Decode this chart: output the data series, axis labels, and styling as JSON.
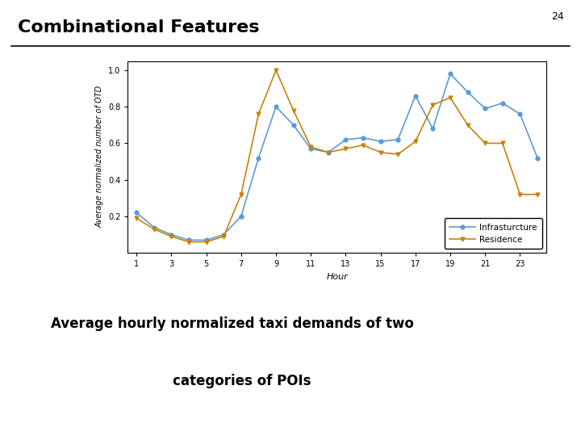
{
  "hours": [
    1,
    2,
    3,
    4,
    5,
    6,
    7,
    8,
    9,
    10,
    11,
    12,
    13,
    14,
    15,
    16,
    17,
    18,
    19,
    20,
    21,
    22,
    23,
    24
  ],
  "infrastructure": [
    0.22,
    0.14,
    0.1,
    0.07,
    0.07,
    0.1,
    0.2,
    0.52,
    0.8,
    0.7,
    0.57,
    0.55,
    0.62,
    0.63,
    0.61,
    0.62,
    0.86,
    0.68,
    0.98,
    0.88,
    0.79,
    0.82,
    0.76,
    0.52
  ],
  "residence": [
    0.19,
    0.13,
    0.09,
    0.06,
    0.06,
    0.09,
    0.32,
    0.76,
    1.0,
    0.78,
    0.58,
    0.55,
    0.57,
    0.59,
    0.55,
    0.54,
    0.61,
    0.81,
    0.85,
    0.7,
    0.6,
    0.6,
    0.32,
    0.32
  ],
  "infra_color": "#5b9bd5",
  "res_color": "#c8820a",
  "xlabel": "Hour",
  "ylabel": "Average normalized number of OTD",
  "title": "Combinational Features",
  "slide_number": "24",
  "caption_line1": "Average hourly normalized taxi demands of two",
  "caption_line2": "    categories of POIs",
  "xticks": [
    1,
    3,
    5,
    7,
    9,
    11,
    13,
    15,
    17,
    19,
    21,
    23
  ],
  "yticks": [
    0.2,
    0.4,
    0.6,
    0.8,
    1.0
  ],
  "ylim": [
    0.0,
    1.05
  ],
  "xlim": [
    0.5,
    24.5
  ]
}
